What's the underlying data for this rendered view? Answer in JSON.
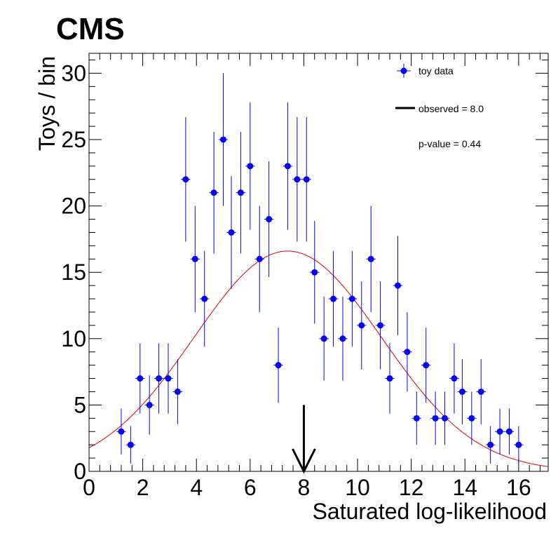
{
  "header": {
    "experiment": "CMS"
  },
  "chart_data": {
    "type": "scatter",
    "xlabel": "Saturated log-likelihood",
    "ylabel": "Toys / bin",
    "xlim": [
      0,
      17.1
    ],
    "ylim": [
      0,
      31.5
    ],
    "xticks": [
      0,
      2,
      4,
      6,
      8,
      10,
      12,
      14,
      16
    ],
    "yticks": [
      0,
      5,
      10,
      15,
      20,
      25,
      30
    ],
    "bin_width": 0.35,
    "colors": {
      "data": "#0000ff",
      "fit": "#e00000",
      "observed": "#000000"
    },
    "legend": {
      "position": "top-right",
      "entries": [
        "toy data",
        "observed = 8.0",
        "p-value = 0.44"
      ]
    },
    "series": [
      {
        "name": "toy data",
        "x": [
          1.2,
          1.55,
          1.9,
          2.25,
          2.6,
          2.95,
          3.3,
          3.6,
          3.95,
          4.3,
          4.65,
          5.0,
          5.3,
          5.65,
          6.0,
          6.35,
          6.7,
          7.05,
          7.4,
          7.75,
          8.1,
          8.4,
          8.75,
          9.1,
          9.45,
          9.8,
          10.15,
          10.5,
          10.85,
          11.2,
          11.5,
          11.85,
          12.2,
          12.55,
          12.9,
          13.25,
          13.6,
          13.9,
          14.25,
          14.6,
          14.95,
          15.3,
          15.65,
          16.0
        ],
        "y": [
          3,
          2,
          7,
          5,
          7,
          7,
          6,
          22,
          16,
          13,
          21,
          25,
          18,
          21,
          23,
          16,
          19,
          8,
          23,
          22,
          22,
          15,
          10,
          13,
          10,
          13,
          11,
          16,
          11,
          7,
          14,
          9,
          4,
          8,
          4,
          4,
          7,
          6,
          4,
          6,
          2,
          3,
          3,
          2
        ]
      }
    ],
    "fit": {
      "type": "gaussian",
      "amplitude": 16.6,
      "mean": 7.4,
      "sigma": 3.5
    },
    "observed_value": 8.0
  }
}
